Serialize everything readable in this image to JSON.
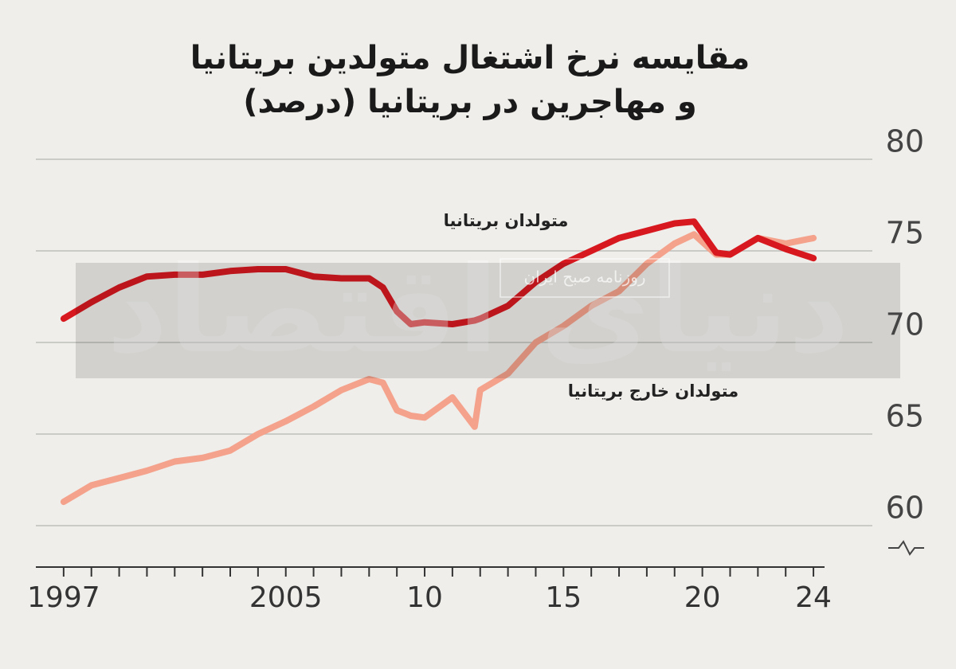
{
  "chart_data": {
    "type": "line",
    "title_lines": [
      "مقایسه نرخ اشتغال متولدین بریتانیا",
      "و مهاجرین در بریتانیا (درصد)"
    ],
    "x": [
      1997,
      1998,
      1999,
      2000,
      2001,
      2002,
      2003,
      2004,
      2005,
      2006,
      2007,
      2008,
      2008.5,
      2009,
      2009.5,
      2010,
      2011,
      2011.8,
      2012,
      2013,
      2014,
      2015,
      2016,
      2017,
      2018,
      2019,
      2019.7,
      2020.5,
      2021,
      2022,
      2023,
      2024
    ],
    "series": [
      {
        "name": "متولدان بریتانیا",
        "color": "#d7191f",
        "values": [
          71.3,
          72.2,
          73.0,
          73.6,
          73.7,
          73.7,
          73.9,
          74.0,
          74.0,
          73.6,
          73.5,
          73.5,
          73.0,
          71.7,
          71.0,
          71.1,
          71.0,
          71.2,
          71.3,
          72.0,
          73.3,
          74.3,
          75.0,
          75.7,
          76.1,
          76.5,
          76.6,
          74.9,
          74.8,
          75.7,
          75.1,
          74.6
        ]
      },
      {
        "name": "متولدان خارج بریتانیا",
        "color": "#f4a28c",
        "values": [
          61.3,
          62.2,
          62.6,
          63.0,
          63.5,
          63.7,
          64.1,
          65.0,
          65.7,
          66.5,
          67.4,
          68.0,
          67.8,
          66.3,
          66.0,
          65.9,
          67.0,
          65.4,
          67.4,
          68.3,
          70.0,
          70.9,
          72.0,
          72.8,
          74.3,
          75.4,
          75.9,
          74.8,
          74.8,
          75.7,
          75.4,
          75.7
        ]
      }
    ],
    "xlim": [
      1996,
      2024.4
    ],
    "xticks": [
      1997,
      2005,
      {
        "value": 2010,
        "label": "10"
      },
      {
        "value": 2015,
        "label": "15"
      },
      {
        "value": 2020,
        "label": "20"
      },
      {
        "value": 2024,
        "label": "24"
      }
    ],
    "x_minor_ticks": [
      1997,
      1998,
      1999,
      2000,
      2001,
      2002,
      2003,
      2004,
      2005,
      2006,
      2007,
      2008,
      2009,
      2010,
      2011,
      2012,
      2013,
      2014,
      2015,
      2016,
      2017,
      2018,
      2019,
      2020,
      2021,
      2022,
      2023,
      2024
    ],
    "ylim": [
      58,
      81
    ],
    "yticks": [
      60,
      65,
      70,
      75,
      80
    ],
    "grid": true,
    "watermark": "روزنامه صبح ایران",
    "watermark_logo": "دنیای اقتصاد"
  }
}
